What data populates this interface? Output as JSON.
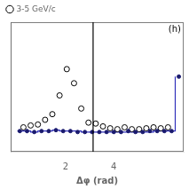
{
  "chart_data": {
    "type": "scatter",
    "xlabel": "Δφ (rad)",
    "annotations": [
      "(h)"
    ],
    "xlim": [
      -0.28,
      6.9
    ],
    "ylim": [
      -0.018,
      0.12
    ],
    "xticks": [
      2,
      4
    ],
    "yticks": [],
    "tick_labels": "x",
    "grid": false,
    "legend": "upper left",
    "vline_x": 3.14159,
    "series": [
      {
        "type": "step",
        "color": "#3030bb",
        "x": [
          0.0,
          0.25,
          0.55,
          0.85,
          1.15,
          1.45,
          1.75,
          2.05,
          2.35,
          2.65,
          2.95,
          3.25,
          3.55,
          3.85,
          4.15,
          4.45,
          4.75,
          5.05,
          5.35,
          5.65,
          5.95,
          6.25,
          6.55
        ],
        "values": [
          0.004,
          0.004,
          0.003,
          0.004,
          0.004,
          0.005,
          0.004,
          0.004,
          0.004,
          0.003,
          0.003,
          0.003,
          0.003,
          0.003,
          0.003,
          0.003,
          0.003,
          0.003,
          0.003,
          0.004,
          0.004,
          0.004,
          0.062
        ]
      },
      {
        "name": "3-5 GeV/c",
        "type": "scatter",
        "marker": "open_circle",
        "color": "#000000",
        "x": [
          0.25,
          0.55,
          0.85,
          1.15,
          1.45,
          1.75,
          2.05,
          2.35,
          2.65,
          2.95,
          3.25,
          3.55,
          3.85,
          4.15,
          4.45,
          4.75,
          5.05,
          5.35,
          5.65,
          5.95,
          6.25
        ],
        "values": [
          0.008,
          0.01,
          0.011,
          0.016,
          0.022,
          0.042,
          0.07,
          0.055,
          0.028,
          0.013,
          0.012,
          0.009,
          0.007,
          0.006,
          0.008,
          0.006,
          0.006,
          0.007,
          0.008,
          0.007,
          0.008
        ]
      },
      {
        "type": "scatter",
        "marker": "filled_circle",
        "color": "#1a1a6e",
        "x": [
          0.1,
          0.4,
          0.7,
          1.0,
          1.3,
          1.6,
          1.9,
          2.2,
          2.5,
          2.8,
          3.1,
          3.4,
          3.7,
          4.0,
          4.3,
          4.6,
          4.9,
          5.2,
          5.5,
          5.8,
          6.1,
          6.4,
          6.7
        ],
        "values": [
          0.004,
          0.004,
          0.003,
          0.004,
          0.004,
          0.005,
          0.004,
          0.004,
          0.003,
          0.003,
          0.003,
          0.003,
          0.003,
          0.003,
          0.003,
          0.004,
          0.003,
          0.003,
          0.004,
          0.004,
          0.004,
          0.004,
          0.062
        ]
      }
    ]
  }
}
